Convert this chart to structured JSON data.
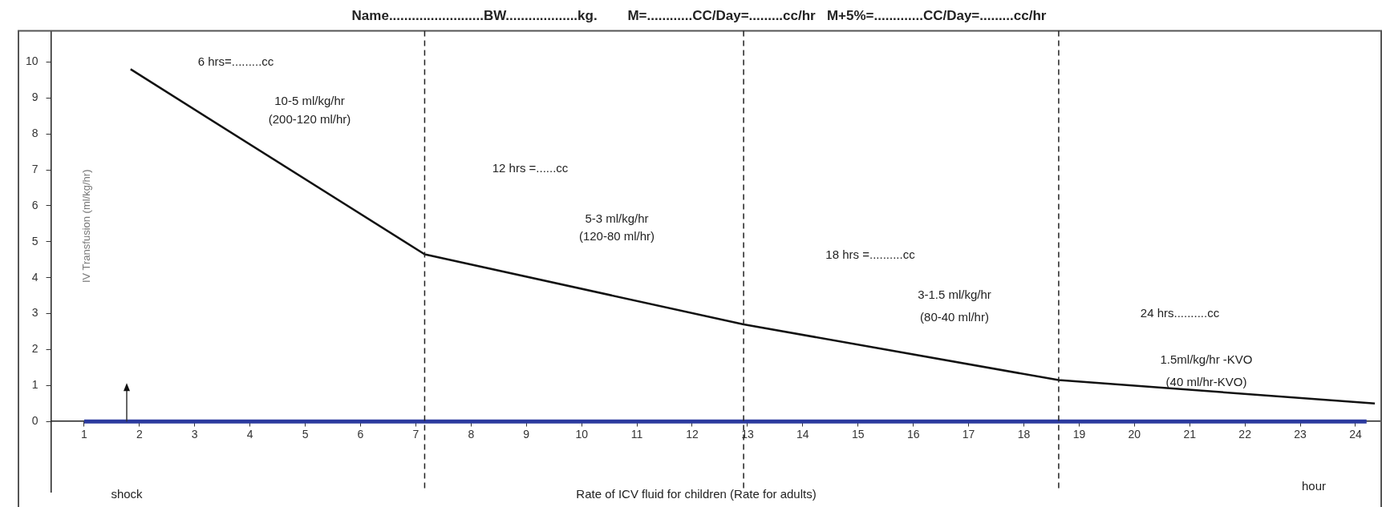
{
  "chart_data": {
    "type": "line",
    "title": "Name.........................BW...................kg.        M=............CC/Day=.........cc/hr   M+5%=.............CC/Day=.........cc/hr",
    "xlabel": "Rate of ICV fluid for children (Rate for adults)",
    "ylabel": "IV Transfusion (ml/kg/hr)",
    "series": [
      {
        "color": "#2b3a9e",
        "x": [
          1,
          24.2
        ],
        "values": [
          0,
          0
        ]
      },
      {
        "color": "#111111",
        "x": [
          1.84,
          7.16,
          12.93,
          18.63,
          24.35
        ],
        "values": [
          9.8,
          4.65,
          2.7,
          1.15,
          0.5
        ]
      }
    ],
    "xlim": [
      0.4,
      24.45
    ],
    "xticks": [
      1,
      2,
      3,
      4,
      5,
      6,
      7,
      8,
      9,
      10,
      11,
      12,
      13,
      14,
      15,
      16,
      17,
      18,
      19,
      20,
      21,
      22,
      23,
      24
    ],
    "ylim": [
      -1.97,
      10.87
    ],
    "yticks": [
      0,
      1,
      2,
      3,
      4,
      5,
      6,
      7,
      8,
      9,
      10
    ],
    "ref_lines": [
      {
        "axis": "x",
        "value": 7.16,
        "color": "#222222",
        "line_style": "dashed"
      },
      {
        "axis": "x",
        "value": 12.93,
        "color": "#222222",
        "line_style": "dashed"
      },
      {
        "axis": "x",
        "value": 18.63,
        "color": "#222222",
        "line_style": "dashed"
      }
    ],
    "annotations": [
      "6 hrs=.........cc",
      "10-5 ml/kg/hr",
      "(200-120 ml/hr)",
      "12 hrs =......cc",
      "5-3 ml/kg/hr",
      "(120-80 ml/hr)",
      "18 hrs =..........cc",
      "3-1.5 ml/kg/hr",
      "(80-40 ml/hr)",
      "24 hrs..........cc",
      "1.5ml/kg/hr -KVO",
      "(40 ml/hr-KVO)",
      "shock",
      "hour"
    ],
    "marker": "none",
    "line_style": "solid",
    "grid": false,
    "legend": false
  }
}
